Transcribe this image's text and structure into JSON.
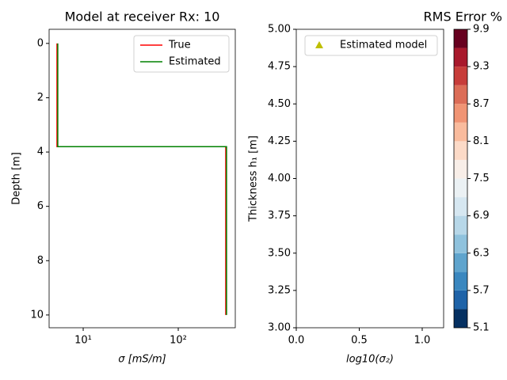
{
  "chart_data": [
    {
      "type": "line",
      "title": "Model at receiver Rx: 10",
      "xlabel": "σ [mS/m]",
      "ylabel": "Depth [m]",
      "xscale": "log",
      "xlim": [
        4.38,
        398
      ],
      "ylim": [
        10.47,
        -0.52
      ],
      "xticks": [
        {
          "value": 10,
          "label": "10¹"
        },
        {
          "value": 100,
          "label": "10²"
        }
      ],
      "yticks": [
        0,
        2,
        4,
        6,
        8,
        10
      ],
      "legend": "upper right",
      "series": [
        {
          "name": "True",
          "color": "#ff0000",
          "x": [
            5.3,
            5.3,
            316,
            316
          ],
          "values": [
            0,
            3.8,
            3.8,
            10
          ]
        },
        {
          "name": "Estimated",
          "color": "#008000",
          "x": [
            5.4,
            5.4,
            322,
            322
          ],
          "values": [
            0,
            3.8,
            3.8,
            10
          ]
        }
      ]
    },
    {
      "type": "scatter",
      "xlabel": "log10(σ₂)",
      "ylabel": "Thickness h₁ [m]",
      "xlim": [
        0,
        1.17
      ],
      "ylim": [
        3,
        5
      ],
      "xticks": [
        {
          "value": 0,
          "label": "0.0"
        },
        {
          "value": 0.5,
          "label": "0.5"
        },
        {
          "value": 1,
          "label": "1.0"
        }
      ],
      "yticks": [
        {
          "value": 3,
          "label": "3.00"
        },
        {
          "value": 3.25,
          "label": "3.25"
        },
        {
          "value": 3.5,
          "label": "3.50"
        },
        {
          "value": 3.75,
          "label": "3.75"
        },
        {
          "value": 4,
          "label": "4.00"
        },
        {
          "value": 4.25,
          "label": "4.25"
        },
        {
          "value": 4.5,
          "label": "4.50"
        },
        {
          "value": 4.75,
          "label": "4.75"
        },
        {
          "value": 5,
          "label": "5.00"
        }
      ],
      "legend": "upper right",
      "series": [
        {
          "name": "Estimated model",
          "color": "#bfbf00",
          "x": [],
          "values": []
        }
      ]
    },
    {
      "type": "colorbar",
      "title": "RMS Error %",
      "levels": [
        5.1,
        5.4,
        5.7,
        6.0,
        6.3,
        6.6,
        6.9,
        7.2,
        7.5,
        7.8,
        8.1,
        8.4,
        8.7,
        9.0,
        9.3,
        9.6,
        9.9
      ],
      "colors": [
        "#053061",
        "#1f63a8",
        "#3a87bf",
        "#5fa4cd",
        "#8fc2dd",
        "#b7d7e8",
        "#d6e7f1",
        "#ebf1f4",
        "#f8eee8",
        "#fcdac7",
        "#f9bb9d",
        "#f09474",
        "#dc6d57",
        "#c73d3a",
        "#a8192c",
        "#67001f"
      ],
      "ylim": [
        5.1,
        9.9
      ],
      "yticks": [
        5.1,
        5.7,
        6.3,
        6.9,
        7.5,
        8.1,
        8.7,
        9.3,
        9.9
      ]
    }
  ]
}
